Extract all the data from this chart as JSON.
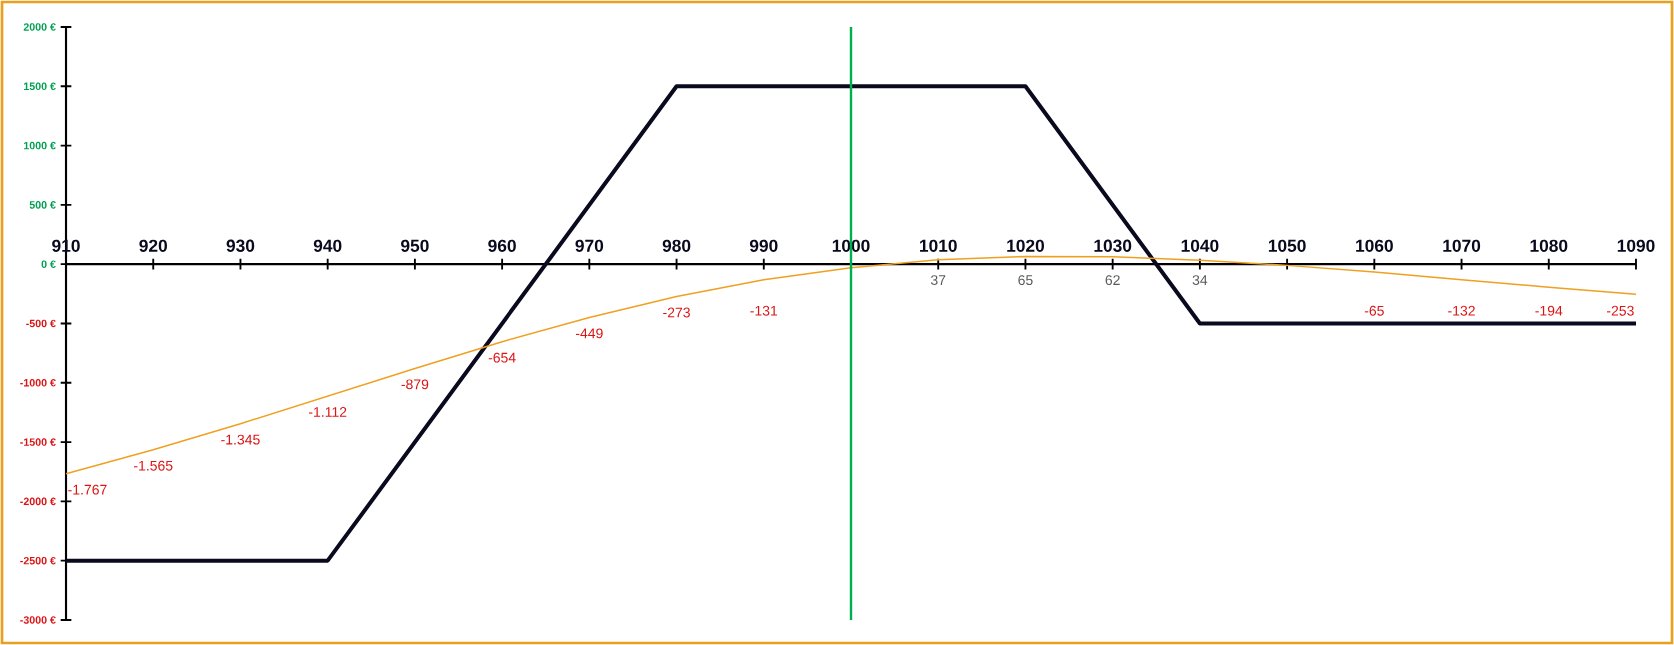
{
  "chart_data": {
    "type": "line",
    "xlim": [
      910,
      1090
    ],
    "ylim": [
      -3000,
      2000
    ],
    "xticks": [
      910,
      920,
      930,
      940,
      950,
      960,
      970,
      980,
      990,
      1000,
      1010,
      1020,
      1030,
      1040,
      1050,
      1060,
      1070,
      1080,
      1090
    ],
    "yticks": [
      {
        "value": 2000,
        "label": "2000 €"
      },
      {
        "value": 1500,
        "label": "1500 €"
      },
      {
        "value": 1000,
        "label": "1000 €"
      },
      {
        "value": 500,
        "label": "500 €"
      },
      {
        "value": 0,
        "label": "0 €"
      },
      {
        "value": -500,
        "label": "-500 €"
      },
      {
        "value": -1000,
        "label": "-1000 €"
      },
      {
        "value": -1500,
        "label": "-1500 €"
      },
      {
        "value": -2000,
        "label": "-2000 €"
      },
      {
        "value": -2500,
        "label": "-2500 €"
      },
      {
        "value": -3000,
        "label": "-3000 €"
      }
    ],
    "series": [
      {
        "color": "#0a0a1e",
        "x": [
          910,
          940,
          980,
          1020,
          1040,
          1090
        ],
        "values": [
          -2500,
          -2500,
          1500,
          1500,
          -500,
          -500
        ]
      },
      {
        "color": "#f0a020",
        "x": [
          910,
          920,
          930,
          940,
          950,
          960,
          970,
          980,
          990,
          1000,
          1010,
          1020,
          1030,
          1040,
          1050,
          1060,
          1070,
          1080,
          1090
        ],
        "values": [
          -1767,
          -1565,
          -1345,
          -1112,
          -879,
          -654,
          -449,
          -273,
          -131,
          -30,
          37,
          65,
          62,
          34,
          -10,
          -65,
          -132,
          -194,
          -253
        ],
        "value_labels": [
          "-1.767",
          "-1.565",
          "-1.345",
          "-1.112",
          "-879",
          "-654",
          "-449",
          "-273",
          "-131",
          null,
          "37",
          "65",
          "62",
          "34",
          null,
          "-65",
          "-132",
          "-194",
          "-253"
        ]
      }
    ],
    "ref_lines": [
      {
        "axis": "x",
        "value": 1000,
        "color": "#00b050"
      }
    ],
    "marker": "none",
    "line_style": "solid"
  }
}
